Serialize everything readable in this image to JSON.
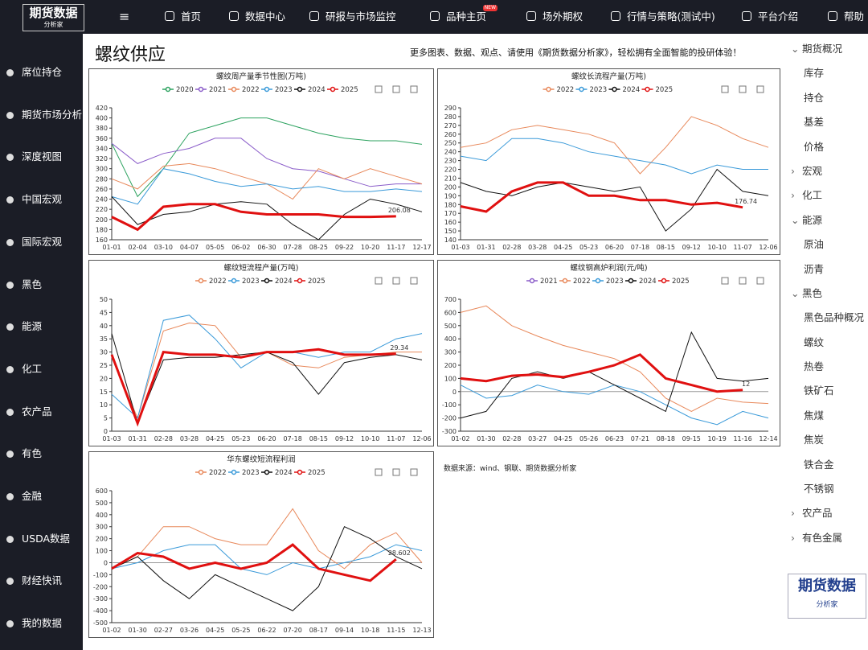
{
  "nav": {
    "logo": "期货数据",
    "logo_sub": "分析家",
    "items": [
      {
        "label": "首页"
      },
      {
        "label": "数据中心"
      },
      {
        "label": "研报与市场监控"
      },
      {
        "label": "品种主页",
        "badge": "NEW"
      },
      {
        "label": "场外期权"
      },
      {
        "label": "行情与策略(测试中)"
      },
      {
        "label": "平台介绍"
      },
      {
        "label": "帮助"
      }
    ]
  },
  "sidebar": [
    "席位持仓",
    "期货市场分析",
    "深度视图",
    "中国宏观",
    "国际宏观",
    "黑色",
    "能源",
    "化工",
    "农产品",
    "有色",
    "金融",
    "USDA数据",
    "财经快讯",
    "我的数据"
  ],
  "page": {
    "title": "螺纹供应",
    "promo": "更多图表、数据、观点、请使用《期货数据分析家》，轻松拥有全面智能的投研体验！",
    "source": "数据来源：wind、钢联、期货数据分析家"
  },
  "right_menu": [
    {
      "label": "期货概况",
      "children": [
        "库存",
        "持仓",
        "基差",
        "价格"
      ]
    },
    {
      "label": "宏观"
    },
    {
      "label": "化工"
    },
    {
      "label": "能源",
      "children": [
        "原油",
        "沥青"
      ]
    },
    {
      "label": "黑色",
      "children": [
        "黑色品种概况",
        "螺纹",
        "热卷",
        "铁矿石",
        "焦煤",
        "焦炭",
        "铁合金",
        "不锈钢"
      ]
    },
    {
      "label": "农产品"
    },
    {
      "label": "有色金属"
    }
  ],
  "chart_data": [
    {
      "type": "line",
      "title": "螺纹周产量季节性图(万吨)",
      "categories": [
        "01-01",
        "02-04",
        "03-10",
        "04-07",
        "05-05",
        "06-02",
        "06-30",
        "07-28",
        "08-25",
        "09-22",
        "10-20",
        "11-17",
        "12-17"
      ],
      "ylim": [
        160,
        420
      ],
      "yticks": [
        160,
        180,
        200,
        220,
        240,
        260,
        280,
        300,
        320,
        340,
        360,
        380,
        400,
        420
      ],
      "series": [
        {
          "name": "2020",
          "color": "#2ca25f",
          "values": [
            350,
            245,
            300,
            370,
            385,
            400,
            400,
            385,
            370,
            360,
            355,
            355,
            348
          ]
        },
        {
          "name": "2021",
          "color": "#8a5cc9",
          "values": [
            350,
            310,
            330,
            340,
            360,
            360,
            320,
            300,
            295,
            280,
            265,
            270,
            270
          ]
        },
        {
          "name": "2022",
          "color": "#e8885a",
          "values": [
            280,
            260,
            305,
            310,
            300,
            285,
            270,
            240,
            300,
            280,
            300,
            285,
            270
          ]
        },
        {
          "name": "2023",
          "color": "#3a9ad9",
          "values": [
            245,
            230,
            300,
            290,
            275,
            265,
            270,
            260,
            265,
            255,
            255,
            260,
            255
          ]
        },
        {
          "name": "2024",
          "color": "#111111",
          "values": [
            245,
            190,
            210,
            215,
            230,
            235,
            230,
            190,
            160,
            210,
            240,
            230,
            215
          ]
        },
        {
          "name": "2025",
          "color": "#e01010",
          "line_width": 3,
          "values": [
            205,
            180,
            225,
            230,
            230,
            215,
            210,
            210,
            210,
            205,
            205,
            206.08,
            null
          ]
        }
      ]
    },
    {
      "type": "line",
      "title": "螺纹长流程产量(万吨)",
      "categories": [
        "01-03",
        "01-31",
        "02-28",
        "03-28",
        "04-25",
        "05-23",
        "06-20",
        "07-18",
        "08-15",
        "09-12",
        "10-10",
        "11-07",
        "12-06"
      ],
      "ylim": [
        140,
        290
      ],
      "yticks": [
        140,
        150,
        160,
        170,
        180,
        190,
        200,
        210,
        220,
        230,
        240,
        250,
        260,
        270,
        280,
        290
      ],
      "series": [
        {
          "name": "2022",
          "color": "#e8885a",
          "values": [
            245,
            250,
            265,
            270,
            265,
            260,
            250,
            215,
            245,
            280,
            270,
            255,
            245
          ]
        },
        {
          "name": "2023",
          "color": "#3a9ad9",
          "values": [
            235,
            230,
            255,
            255,
            250,
            240,
            235,
            230,
            225,
            215,
            225,
            220,
            220
          ]
        },
        {
          "name": "2024",
          "color": "#111111",
          "values": [
            205,
            195,
            190,
            200,
            205,
            200,
            195,
            200,
            150,
            175,
            220,
            195,
            190
          ]
        },
        {
          "name": "2025",
          "color": "#e01010",
          "line_width": 3,
          "values": [
            178,
            172,
            195,
            205,
            205,
            190,
            190,
            185,
            185,
            180,
            182,
            176.74,
            null
          ]
        }
      ]
    },
    {
      "type": "line",
      "title": "螺纹短流程产量(万吨)",
      "categories": [
        "01-03",
        "01-31",
        "02-28",
        "03-28",
        "04-25",
        "05-23",
        "06-20",
        "07-18",
        "08-15",
        "09-12",
        "10-10",
        "11-07",
        "12-06"
      ],
      "ylim": [
        0,
        50
      ],
      "yticks": [
        0,
        5,
        10,
        15,
        20,
        25,
        30,
        35,
        40,
        45,
        50
      ],
      "series": [
        {
          "name": "2022",
          "color": "#e8885a",
          "values": [
            28,
            5,
            38,
            41,
            40,
            28,
            30,
            25,
            24,
            28,
            29,
            30,
            30
          ]
        },
        {
          "name": "2023",
          "color": "#3a9ad9",
          "values": [
            14,
            5,
            42,
            44,
            35,
            24,
            30,
            30,
            28,
            30,
            30,
            35,
            37
          ]
        },
        {
          "name": "2024",
          "color": "#111111",
          "values": [
            37,
            3,
            27,
            28,
            28,
            29,
            30,
            26,
            14,
            26,
            28,
            29,
            27
          ]
        },
        {
          "name": "2025",
          "color": "#e01010",
          "line_width": 3,
          "values": [
            29,
            3,
            30,
            29,
            29,
            28,
            30,
            30,
            31,
            29,
            29,
            29.34,
            null
          ]
        }
      ]
    },
    {
      "type": "line",
      "title": "螺纹钢高炉利润(元/吨)",
      "categories": [
        "01-02",
        "01-30",
        "02-28",
        "03-27",
        "04-25",
        "05-26",
        "06-23",
        "07-21",
        "08-18",
        "09-15",
        "10-19",
        "11-16",
        "12-14"
      ],
      "ylim": [
        -300,
        700
      ],
      "yticks": [
        -300,
        -200,
        -100,
        0,
        100,
        200,
        300,
        400,
        500,
        600,
        700
      ],
      "series": [
        {
          "name": "2021",
          "color": "#8a5cc9",
          "values": [
            null,
            null,
            null,
            null,
            null,
            null,
            null,
            null,
            null,
            null,
            null,
            null,
            null
          ]
        },
        {
          "name": "2022",
          "color": "#e8885a",
          "values": [
            600,
            650,
            500,
            420,
            350,
            300,
            250,
            150,
            -50,
            -150,
            -50,
            -80,
            -90
          ]
        },
        {
          "name": "2023",
          "color": "#3a9ad9",
          "values": [
            50,
            -50,
            -30,
            50,
            0,
            -20,
            50,
            0,
            -100,
            -200,
            -250,
            -150,
            -200
          ]
        },
        {
          "name": "2024",
          "color": "#111111",
          "values": [
            -200,
            -150,
            100,
            150,
            100,
            150,
            50,
            -50,
            -150,
            450,
            100,
            80,
            100
          ]
        },
        {
          "name": "2025",
          "color": "#e01010",
          "line_width": 3,
          "values": [
            100,
            80,
            120,
            130,
            110,
            150,
            200,
            280,
            100,
            50,
            0,
            12,
            null
          ]
        }
      ]
    },
    {
      "type": "line",
      "title": "华东螺纹短流程利润",
      "categories": [
        "01-02",
        "01-30",
        "02-27",
        "03-26",
        "04-25",
        "05-25",
        "06-22",
        "07-20",
        "08-17",
        "09-14",
        "10-18",
        "11-15",
        "12-13"
      ],
      "ylim": [
        -500,
        600
      ],
      "yticks": [
        -500,
        -400,
        -300,
        -200,
        -100,
        0,
        100,
        200,
        300,
        400,
        500,
        600
      ],
      "series": [
        {
          "name": "2022",
          "color": "#e8885a",
          "values": [
            -50,
            50,
            300,
            300,
            200,
            150,
            150,
            450,
            100,
            -50,
            150,
            250,
            0
          ]
        },
        {
          "name": "2023",
          "color": "#3a9ad9",
          "values": [
            -50,
            0,
            100,
            150,
            150,
            -50,
            -100,
            0,
            -50,
            0,
            50,
            150,
            100
          ]
        },
        {
          "name": "2024",
          "color": "#111111",
          "values": [
            -50,
            50,
            -150,
            -300,
            -100,
            -200,
            -300,
            -400,
            -200,
            300,
            200,
            50,
            -50
          ]
        },
        {
          "name": "2025",
          "color": "#e01010",
          "line_width": 3,
          "values": [
            -50,
            80,
            50,
            -50,
            0,
            -50,
            0,
            150,
            -50,
            -100,
            -150,
            28.602,
            null
          ]
        }
      ]
    }
  ]
}
